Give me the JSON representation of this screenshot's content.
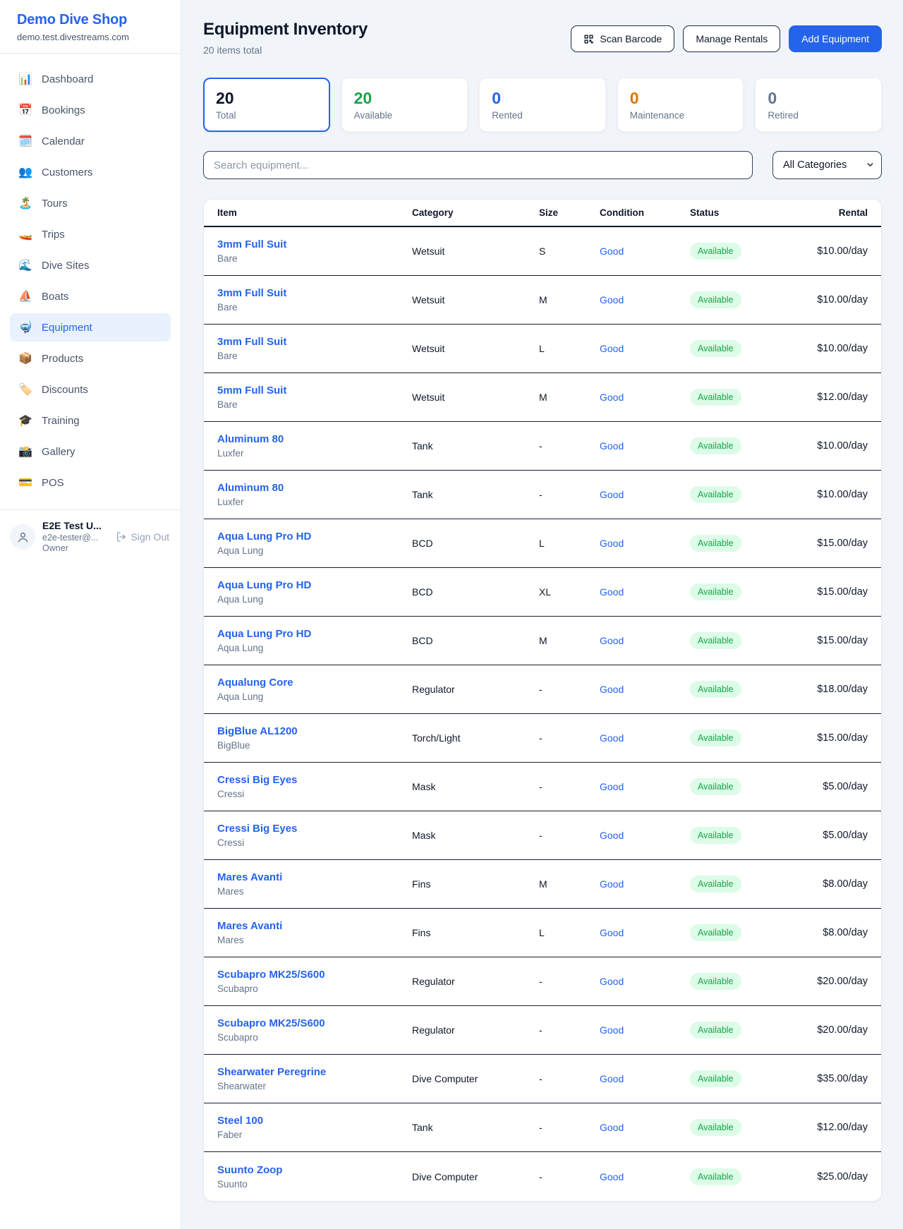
{
  "colors": {
    "accent": "#2563eb",
    "available_green": "#16a34a",
    "maintenance_orange": "#d97706",
    "retired_gray": "#64748b",
    "badge_bg": "#dcfce7"
  },
  "sidebar": {
    "brand": {
      "name": "Demo Dive Shop",
      "domain": "demo.test.divestreams.com"
    },
    "nav": [
      {
        "label": "Dashboard",
        "icon": "📊",
        "active": false
      },
      {
        "label": "Bookings",
        "icon": "📅",
        "active": false
      },
      {
        "label": "Calendar",
        "icon": "🗓️",
        "active": false
      },
      {
        "label": "Customers",
        "icon": "👥",
        "active": false
      },
      {
        "label": "Tours",
        "icon": "🏝️",
        "active": false
      },
      {
        "label": "Trips",
        "icon": "🚤",
        "active": false
      },
      {
        "label": "Dive Sites",
        "icon": "🌊",
        "active": false
      },
      {
        "label": "Boats",
        "icon": "⛵",
        "active": false
      },
      {
        "label": "Equipment",
        "icon": "🤿",
        "active": true
      },
      {
        "label": "Products",
        "icon": "📦",
        "active": false
      },
      {
        "label": "Discounts",
        "icon": "🏷️",
        "active": false
      },
      {
        "label": "Training",
        "icon": "🎓",
        "active": false
      },
      {
        "label": "Gallery",
        "icon": "📸",
        "active": false
      },
      {
        "label": "POS",
        "icon": "💳",
        "active": false
      }
    ],
    "user": {
      "name": "E2E Test U...",
      "email": "e2e-tester@...",
      "role": "Owner",
      "sign_out_label": "Sign Out"
    }
  },
  "header": {
    "title": "Equipment Inventory",
    "subtitle": "20 items total",
    "buttons": {
      "scan": "Scan Barcode",
      "manage": "Manage Rentals",
      "add": "Add Equipment"
    }
  },
  "stats": [
    {
      "value": "20",
      "label": "Total",
      "color": "#0f172a",
      "active": true
    },
    {
      "value": "20",
      "label": "Available",
      "color": "#16a34a",
      "active": false
    },
    {
      "value": "0",
      "label": "Rented",
      "color": "#2563eb",
      "active": false
    },
    {
      "value": "0",
      "label": "Maintenance",
      "color": "#d97706",
      "active": false
    },
    {
      "value": "0",
      "label": "Retired",
      "color": "#64748b",
      "active": false
    }
  ],
  "filters": {
    "search_placeholder": "Search equipment...",
    "category_selected": "All Categories"
  },
  "table": {
    "columns": [
      "Item",
      "Category",
      "Size",
      "Condition",
      "Status",
      "Rental"
    ],
    "rows": [
      {
        "name": "3mm Full Suit",
        "brand": "Bare",
        "category": "Wetsuit",
        "size": "S",
        "condition": "Good",
        "status": "Available",
        "rental": "$10.00/day"
      },
      {
        "name": "3mm Full Suit",
        "brand": "Bare",
        "category": "Wetsuit",
        "size": "M",
        "condition": "Good",
        "status": "Available",
        "rental": "$10.00/day"
      },
      {
        "name": "3mm Full Suit",
        "brand": "Bare",
        "category": "Wetsuit",
        "size": "L",
        "condition": "Good",
        "status": "Available",
        "rental": "$10.00/day"
      },
      {
        "name": "5mm Full Suit",
        "brand": "Bare",
        "category": "Wetsuit",
        "size": "M",
        "condition": "Good",
        "status": "Available",
        "rental": "$12.00/day"
      },
      {
        "name": "Aluminum 80",
        "brand": "Luxfer",
        "category": "Tank",
        "size": "-",
        "condition": "Good",
        "status": "Available",
        "rental": "$10.00/day"
      },
      {
        "name": "Aluminum 80",
        "brand": "Luxfer",
        "category": "Tank",
        "size": "-",
        "condition": "Good",
        "status": "Available",
        "rental": "$10.00/day"
      },
      {
        "name": "Aqua Lung Pro HD",
        "brand": "Aqua Lung",
        "category": "BCD",
        "size": "L",
        "condition": "Good",
        "status": "Available",
        "rental": "$15.00/day"
      },
      {
        "name": "Aqua Lung Pro HD",
        "brand": "Aqua Lung",
        "category": "BCD",
        "size": "XL",
        "condition": "Good",
        "status": "Available",
        "rental": "$15.00/day"
      },
      {
        "name": "Aqua Lung Pro HD",
        "brand": "Aqua Lung",
        "category": "BCD",
        "size": "M",
        "condition": "Good",
        "status": "Available",
        "rental": "$15.00/day"
      },
      {
        "name": "Aqualung Core",
        "brand": "Aqua Lung",
        "category": "Regulator",
        "size": "-",
        "condition": "Good",
        "status": "Available",
        "rental": "$18.00/day"
      },
      {
        "name": "BigBlue AL1200",
        "brand": "BigBlue",
        "category": "Torch/Light",
        "size": "-",
        "condition": "Good",
        "status": "Available",
        "rental": "$15.00/day"
      },
      {
        "name": "Cressi Big Eyes",
        "brand": "Cressi",
        "category": "Mask",
        "size": "-",
        "condition": "Good",
        "status": "Available",
        "rental": "$5.00/day"
      },
      {
        "name": "Cressi Big Eyes",
        "brand": "Cressi",
        "category": "Mask",
        "size": "-",
        "condition": "Good",
        "status": "Available",
        "rental": "$5.00/day"
      },
      {
        "name": "Mares Avanti",
        "brand": "Mares",
        "category": "Fins",
        "size": "M",
        "condition": "Good",
        "status": "Available",
        "rental": "$8.00/day"
      },
      {
        "name": "Mares Avanti",
        "brand": "Mares",
        "category": "Fins",
        "size": "L",
        "condition": "Good",
        "status": "Available",
        "rental": "$8.00/day"
      },
      {
        "name": "Scubapro MK25/S600",
        "brand": "Scubapro",
        "category": "Regulator",
        "size": "-",
        "condition": "Good",
        "status": "Available",
        "rental": "$20.00/day"
      },
      {
        "name": "Scubapro MK25/S600",
        "brand": "Scubapro",
        "category": "Regulator",
        "size": "-",
        "condition": "Good",
        "status": "Available",
        "rental": "$20.00/day"
      },
      {
        "name": "Shearwater Peregrine",
        "brand": "Shearwater",
        "category": "Dive Computer",
        "size": "-",
        "condition": "Good",
        "status": "Available",
        "rental": "$35.00/day"
      },
      {
        "name": "Steel 100",
        "brand": "Faber",
        "category": "Tank",
        "size": "-",
        "condition": "Good",
        "status": "Available",
        "rental": "$12.00/day"
      },
      {
        "name": "Suunto Zoop",
        "brand": "Suunto",
        "category": "Dive Computer",
        "size": "-",
        "condition": "Good",
        "status": "Available",
        "rental": "$25.00/day"
      }
    ]
  }
}
